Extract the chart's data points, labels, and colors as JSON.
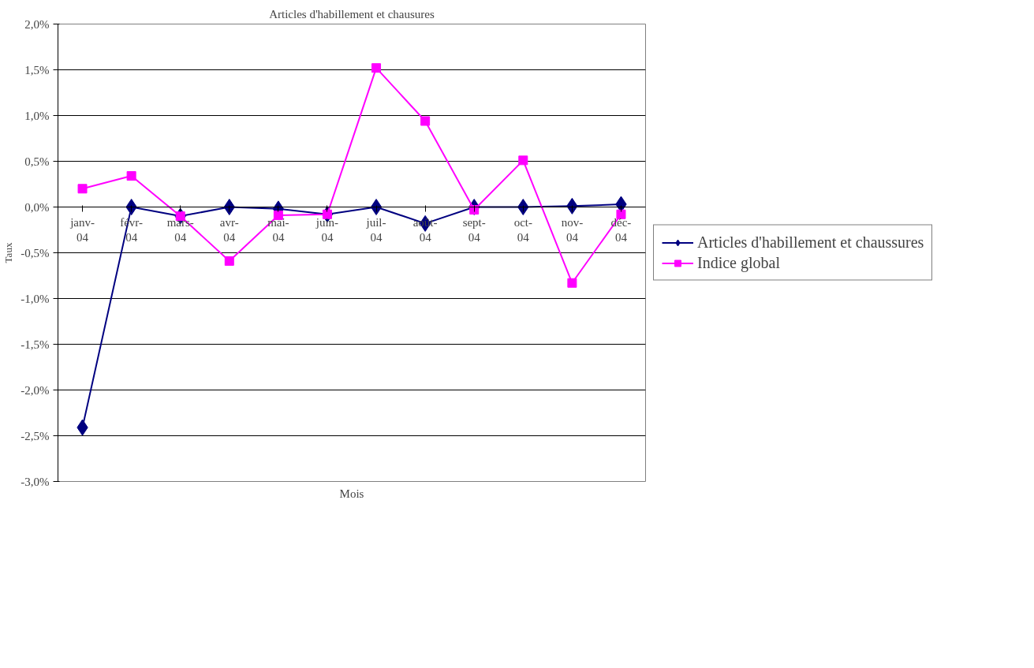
{
  "chart_data": {
    "type": "line",
    "title": "Articles d'habillement et chausures",
    "xlabel": "Mois",
    "ylabel": "Taux",
    "categories": [
      "janv-04",
      "févr-04",
      "mars-04",
      "avr-04",
      "mai-04",
      "juin-04",
      "juil-04",
      "août-04",
      "sept-04",
      "oct-04",
      "nov-04",
      "déc-04"
    ],
    "series": [
      {
        "name": "Articles d'habillement et chaussures",
        "color": "#000080",
        "marker": "diamond",
        "values": [
          -2.41,
          0.0,
          -0.1,
          0.0,
          -0.02,
          -0.08,
          0.0,
          -0.18,
          0.0,
          0.0,
          0.01,
          0.03
        ]
      },
      {
        "name": "Indice global",
        "color": "#ff00ff",
        "marker": "square",
        "values": [
          0.2,
          0.34,
          -0.1,
          -0.59,
          -0.09,
          -0.08,
          1.52,
          0.94,
          -0.03,
          0.51,
          -0.83,
          -0.08
        ]
      }
    ],
    "ylim": [
      -3.0,
      2.0
    ],
    "yticks": [
      {
        "value": -3.0,
        "label": "-3,0%"
      },
      {
        "value": -2.5,
        "label": "-2,5%"
      },
      {
        "value": -2.0,
        "label": "-2,0%"
      },
      {
        "value": -1.5,
        "label": "-1,5%"
      },
      {
        "value": -1.0,
        "label": "-1,0%"
      },
      {
        "value": -0.5,
        "label": "-0,5%"
      },
      {
        "value": 0.0,
        "label": "0,0%"
      },
      {
        "value": 0.5,
        "label": "0,5%"
      },
      {
        "value": 1.0,
        "label": "1,0%"
      },
      {
        "value": 1.5,
        "label": "1,5%"
      },
      {
        "value": 2.0,
        "label": "2,0%"
      }
    ],
    "grid": "y",
    "legend": "right",
    "line_style": "solid"
  }
}
